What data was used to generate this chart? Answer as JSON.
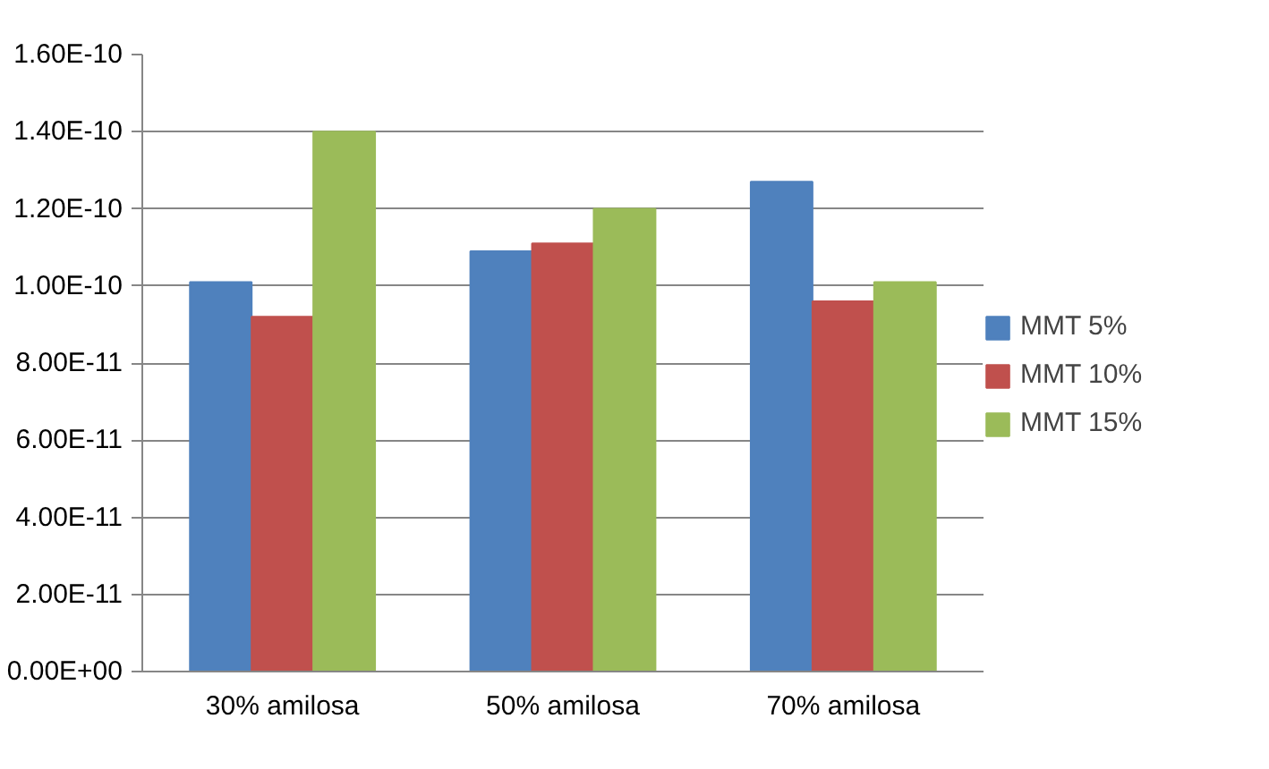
{
  "chart_data": {
    "type": "bar",
    "categories": [
      "30% amilosa",
      "50% amilosa",
      "70% amilosa"
    ],
    "series": [
      {
        "name": "MMT 5%",
        "color": "#4f81bd",
        "values": [
          1.01e-10,
          1.09e-10,
          1.27e-10
        ]
      },
      {
        "name": "MMT 10%",
        "color": "#c0504d",
        "values": [
          9.2e-11,
          1.11e-10,
          9.6e-11
        ]
      },
      {
        "name": "MMT 15%",
        "color": "#9bbb59",
        "values": [
          1.4e-10,
          1.2e-10,
          1.01e-10
        ]
      }
    ],
    "ylim": [
      0,
      1.6e-10
    ],
    "yticks": [
      {
        "value": 0,
        "label": "0.00E+00"
      },
      {
        "value": 2e-11,
        "label": "2.00E-11"
      },
      {
        "value": 4e-11,
        "label": "4.00E-11"
      },
      {
        "value": 6e-11,
        "label": "6.00E-11"
      },
      {
        "value": 8e-11,
        "label": "8.00E-11"
      },
      {
        "value": 1e-10,
        "label": "1.00E-10"
      },
      {
        "value": 1.2e-10,
        "label": "1.20E-10"
      },
      {
        "value": 1.4e-10,
        "label": "1.40E-10"
      },
      {
        "value": 1.6e-10,
        "label": "1.60E-10"
      }
    ],
    "grid": "y",
    "legend": "right"
  }
}
